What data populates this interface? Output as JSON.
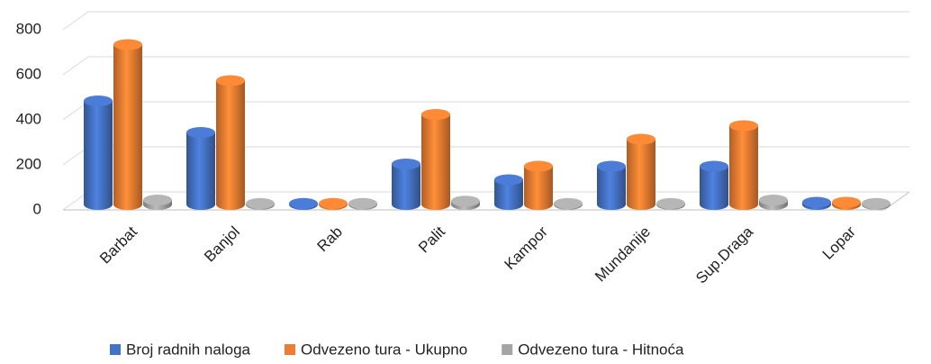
{
  "chart_data": {
    "type": "bar3d",
    "categories": [
      "Barbat",
      "Banjol",
      "Rab",
      "Palit",
      "Kampor",
      "Mundanije",
      "Sup.Draga",
      "Lopar"
    ],
    "series": [
      {
        "name": "Broj radnih naloga",
        "color": "#4472c4",
        "values": [
          460,
          320,
          5,
          180,
          110,
          170,
          170,
          10
        ]
      },
      {
        "name": "Odvezeno tura - Ukupno",
        "color": "#ed7d31",
        "values": [
          710,
          550,
          5,
          400,
          170,
          290,
          350,
          10
        ]
      },
      {
        "name": "Odvezeno tura - Hitnoća",
        "color": "#a5a5a5",
        "values": [
          20,
          5,
          5,
          15,
          5,
          5,
          20,
          5
        ]
      }
    ],
    "ylim": [
      0,
      800
    ],
    "yticks": [
      0,
      200,
      400,
      600,
      800
    ],
    "grid": true,
    "legend": "bottom"
  }
}
